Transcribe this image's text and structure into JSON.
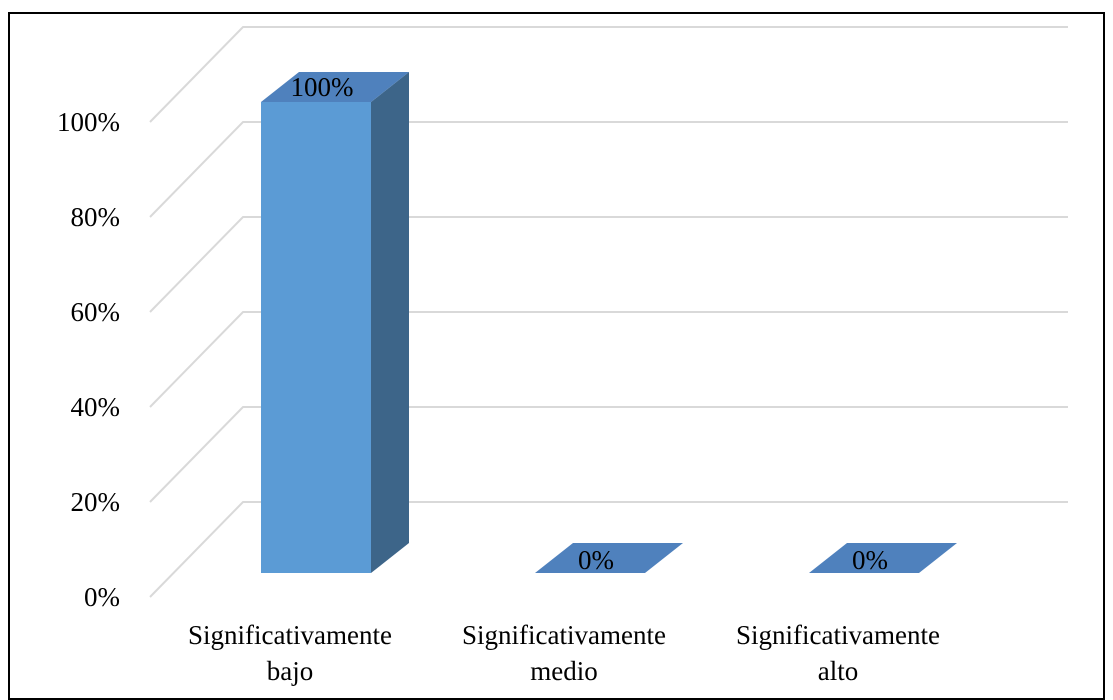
{
  "chart_data": {
    "type": "bar",
    "three_d": true,
    "title": "",
    "xlabel": "",
    "ylabel": "",
    "categories": [
      [
        "Significativamente",
        "bajo"
      ],
      [
        "Significativamente",
        "medio"
      ],
      [
        "Significativamente",
        "alto"
      ]
    ],
    "values": [
      100,
      0,
      0
    ],
    "data_labels": [
      "100%",
      "0%",
      "0%"
    ],
    "y_ticks": [
      "0%",
      "20%",
      "40%",
      "60%",
      "80%",
      "100%"
    ],
    "ylim": [
      0,
      100
    ],
    "grid": true,
    "legend": "none",
    "colors": {
      "bar_front": "#5b9bd5",
      "bar_side": "#3d6589",
      "bar_top": "#4f81bd",
      "grid": "#d9d9d9",
      "frame": "#000000"
    }
  }
}
